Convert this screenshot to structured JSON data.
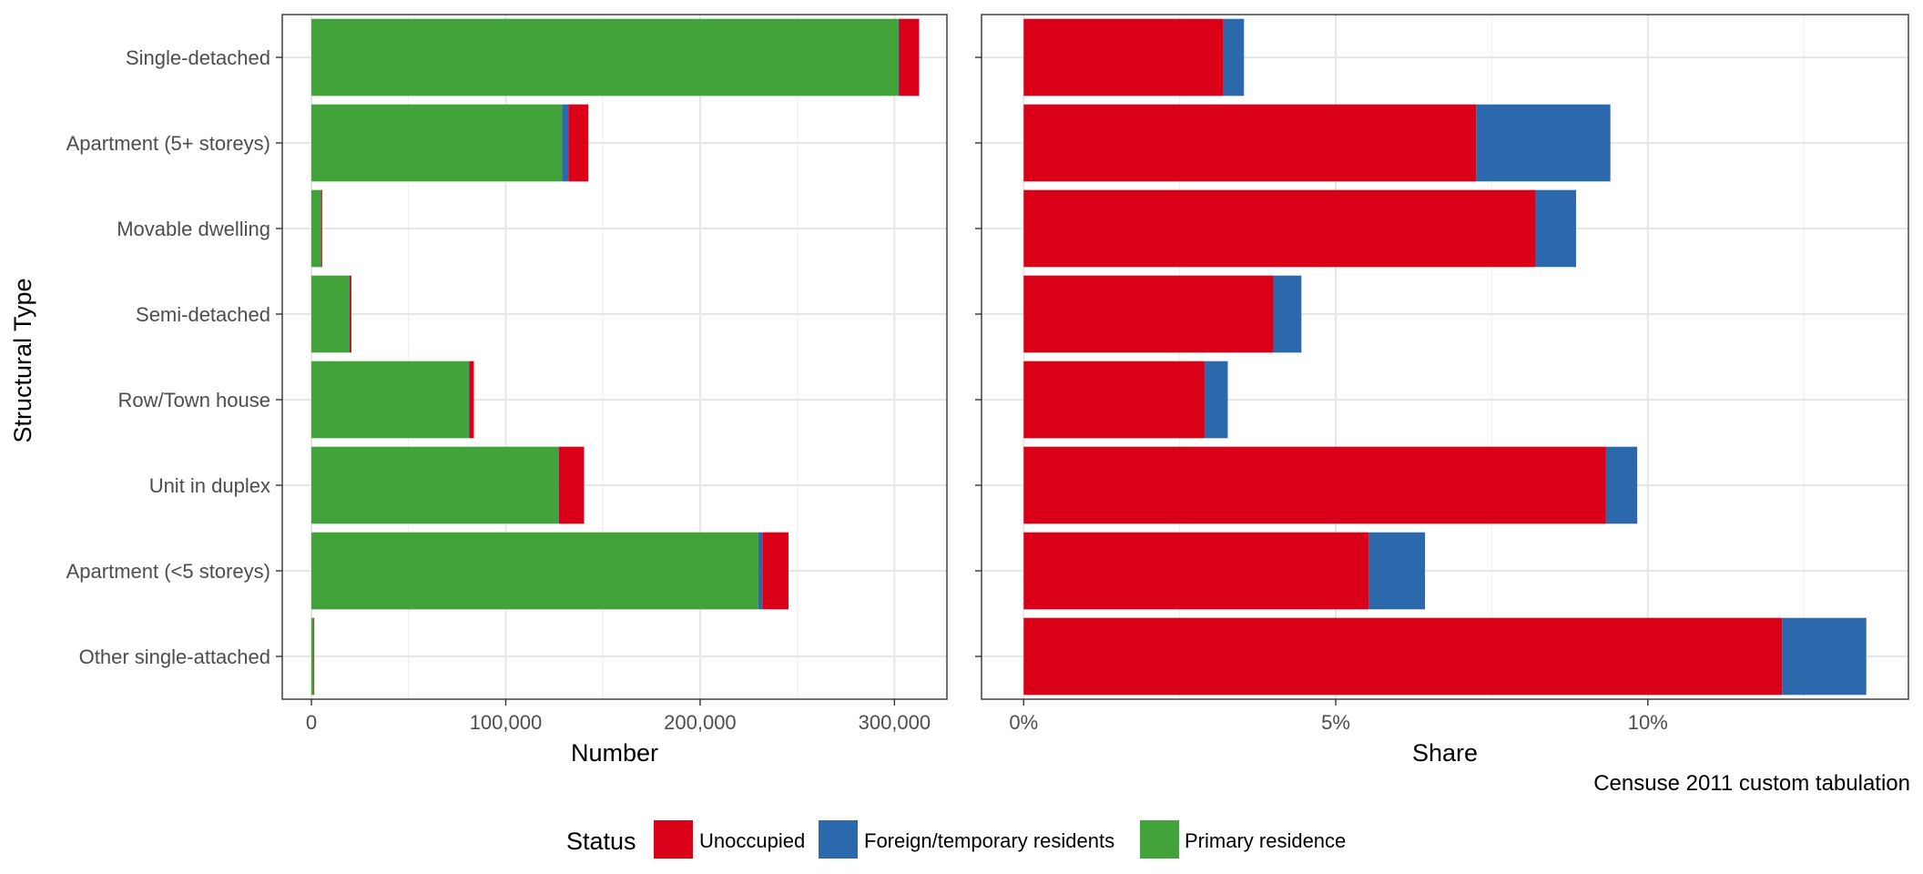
{
  "chart_data": [
    {
      "type": "bar",
      "orientation": "horizontal",
      "stacked": true,
      "xlabel": "Number",
      "ylabel": "Structural Type",
      "categories": [
        "Single-detached",
        "Apartment (5+ storeys)",
        "Movable dwelling",
        "Semi-detached",
        "Row/Town house",
        "Unit in duplex",
        "Apartment (<5 storeys)",
        "Other single-attached"
      ],
      "xlim": [
        -15000,
        327000
      ],
      "xticks": [
        0,
        100000,
        200000,
        300000
      ],
      "xtick_labels": [
        "0",
        "100,000",
        "200,000",
        "300,000"
      ],
      "series": [
        {
          "name": "Primary residence",
          "color": "#41a33a",
          "values": [
            302000,
            129000,
            5000,
            19500,
            81000,
            127000,
            230000,
            1200
          ]
        },
        {
          "name": "Foreign/temporary residents",
          "color": "#2c69ac",
          "values": [
            400,
            3200,
            50,
            150,
            300,
            300,
            2000,
            20
          ]
        },
        {
          "name": "Unoccupied",
          "color": "#da0018",
          "values": [
            10300,
            10300,
            500,
            900,
            2300,
            13000,
            13500,
            150
          ]
        }
      ],
      "grid": true
    },
    {
      "type": "bar",
      "orientation": "horizontal",
      "stacked": true,
      "xlabel": "Share",
      "ylabel": "",
      "categories": [
        "Single-detached",
        "Apartment (5+ storeys)",
        "Movable dwelling",
        "Semi-detached",
        "Row/Town house",
        "Unit in duplex",
        "Apartment (<5 storeys)",
        "Other single-attached"
      ],
      "xlim": [
        -0.675,
        14.175
      ],
      "xticks": [
        0,
        5,
        10
      ],
      "xtick_labels": [
        "0%",
        "5%",
        "10%"
      ],
      "series": [
        {
          "name": "Unoccupied",
          "color": "#da0018",
          "values": [
            3.2,
            7.25,
            8.2,
            4.0,
            2.9,
            9.33,
            5.53,
            12.15
          ]
        },
        {
          "name": "Foreign/temporary residents",
          "color": "#2c69ac",
          "values": [
            0.33,
            2.15,
            0.65,
            0.45,
            0.37,
            0.5,
            0.9,
            1.35
          ]
        }
      ],
      "grid": true
    }
  ],
  "caption": "Censuse 2011 custom tabulation",
  "legend": {
    "title": "Status",
    "position": "bottom",
    "items": [
      {
        "label": "Unoccupied",
        "color": "#da0018"
      },
      {
        "label": "Foreign/temporary residents",
        "color": "#2c69ac"
      },
      {
        "label": "Primary residence",
        "color": "#41a33a"
      }
    ]
  }
}
